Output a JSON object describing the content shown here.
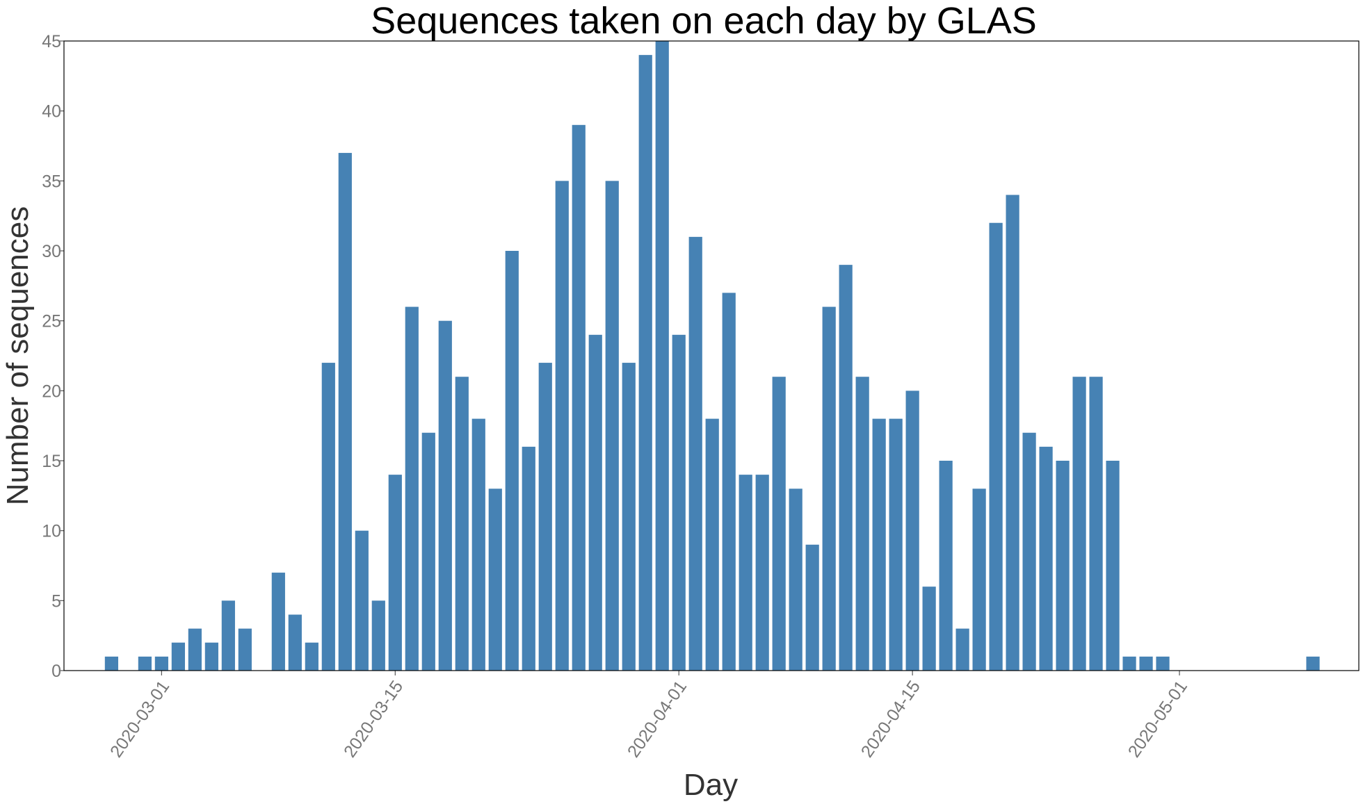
{
  "chart_data": {
    "type": "bar",
    "title": "Sequences taken on each day by GLAS",
    "xlabel": "Day",
    "ylabel": "Number of sequences",
    "ylim": [
      0,
      45
    ],
    "y_ticks": [
      0,
      5,
      10,
      15,
      20,
      25,
      30,
      35,
      40,
      45
    ],
    "x_tick_labels": [
      "2020-03-01",
      "2020-03-15",
      "2020-04-01",
      "2020-04-15",
      "2020-05-01"
    ],
    "x_ticks": [
      "2020-03-01",
      "2020-03-15",
      "2020-04-01",
      "2020-04-15",
      "2020-05-01"
    ],
    "xlim": [
      "2020-02-24",
      "2020-05-12"
    ],
    "bar_color": "#4682b4",
    "grid": false,
    "categories": [
      "2020-02-27",
      "2020-02-29",
      "2020-03-01",
      "2020-03-02",
      "2020-03-03",
      "2020-03-04",
      "2020-03-05",
      "2020-03-06",
      "2020-03-08",
      "2020-03-09",
      "2020-03-10",
      "2020-03-11",
      "2020-03-12",
      "2020-03-13",
      "2020-03-14",
      "2020-03-15",
      "2020-03-16",
      "2020-03-17",
      "2020-03-18",
      "2020-03-19",
      "2020-03-20",
      "2020-03-21",
      "2020-03-22",
      "2020-03-23",
      "2020-03-24",
      "2020-03-25",
      "2020-03-26",
      "2020-03-27",
      "2020-03-28",
      "2020-03-29",
      "2020-03-30",
      "2020-03-31",
      "2020-04-01",
      "2020-04-02",
      "2020-04-03",
      "2020-04-04",
      "2020-04-05",
      "2020-04-06",
      "2020-04-07",
      "2020-04-08",
      "2020-04-09",
      "2020-04-10",
      "2020-04-11",
      "2020-04-12",
      "2020-04-13",
      "2020-04-14",
      "2020-04-15",
      "2020-04-16",
      "2020-04-17",
      "2020-04-18",
      "2020-04-19",
      "2020-04-20",
      "2020-04-21",
      "2020-04-22",
      "2020-04-23",
      "2020-04-24",
      "2020-04-25",
      "2020-04-26",
      "2020-04-27",
      "2020-04-28",
      "2020-04-29",
      "2020-04-30",
      "2020-05-09"
    ],
    "values": [
      1,
      1,
      1,
      2,
      3,
      2,
      5,
      3,
      7,
      4,
      2,
      22,
      37,
      10,
      5,
      14,
      26,
      17,
      25,
      21,
      18,
      13,
      30,
      16,
      22,
      35,
      39,
      24,
      35,
      22,
      44,
      45,
      24,
      31,
      18,
      27,
      14,
      14,
      21,
      13,
      9,
      26,
      29,
      21,
      18,
      18,
      20,
      6,
      15,
      3,
      13,
      32,
      34,
      17,
      16,
      15,
      21,
      21,
      15,
      1,
      1,
      1,
      1
    ]
  }
}
